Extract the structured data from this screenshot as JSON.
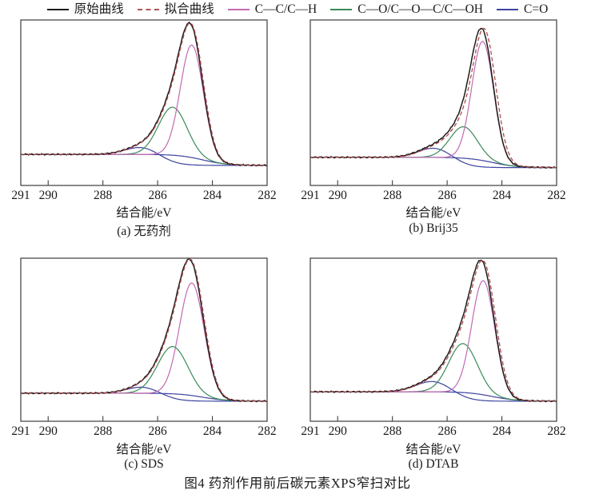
{
  "figure": {
    "caption": "图4 药剂作用前后碳元素XPS窄扫对比"
  },
  "legend": {
    "items": [
      {
        "label": "原始曲线",
        "color": "#1c1c1c",
        "dash": "solid"
      },
      {
        "label": "拟合曲线",
        "color": "#b05454",
        "dash": "dashed"
      },
      {
        "label": "C—C/C—H",
        "color": "#c26ab2",
        "dash": "solid"
      },
      {
        "label": "C—O/C—O—C/C—OH",
        "color": "#3a8a58",
        "dash": "solid"
      },
      {
        "label": "C=O",
        "color": "#3d43a0",
        "dash": "solid"
      }
    ]
  },
  "colors": {
    "original": "#1c1c1c",
    "fit": "#ad4a4a",
    "cc_ch": "#c26ab2",
    "co": "#3a8a58",
    "c_double_o": "#3d43a0",
    "frame": "#3c3c3c",
    "text": "#1a1a1a"
  },
  "chart_data": [
    {
      "type": "line",
      "caption": "(a) 无药剂",
      "xlabel": "结合能/eV",
      "ylabel": "",
      "x_axis": {
        "min": 282,
        "max": 291,
        "reversed": true,
        "unit": "eV",
        "tick_values": [
          291,
          290,
          288,
          286,
          284,
          282
        ],
        "tick_labels": [
          "291",
          "290",
          "288",
          "286",
          "284",
          "282"
        ],
        "tick_marks": [
          290,
          288,
          286,
          284
        ]
      },
      "y_axis": {
        "visible": false,
        "ylim": [
          0,
          1
        ]
      },
      "series_names": [
        "原始曲线",
        "拟合曲线",
        "C—C/C—H",
        "C—O/C—O—C/C—OH",
        "C=O"
      ],
      "baseline": {
        "left": 0.188,
        "right": 0.121,
        "step_center": 284.35,
        "step_width": 0.45
      },
      "fit_shift_ev": 0.03,
      "peaks": [
        {
          "name": "C—C/C—H",
          "color": "#c26ab2",
          "center": 284.75,
          "sigma": 0.42,
          "amp": 0.68
        },
        {
          "name": "C—O/C—O—C/C—OH",
          "color": "#3a8a58",
          "center": 285.45,
          "sigma": 0.52,
          "amp": 0.29
        },
        {
          "name": "C=O",
          "color": "#3d43a0",
          "center": 286.55,
          "sigma": 0.6,
          "amp": 0.05,
          "step_center": 285.9,
          "step_width": 0.38
        }
      ]
    },
    {
      "type": "line",
      "caption": "(b) Brij35",
      "xlabel": "结合能/eV",
      "ylabel": "",
      "x_axis": {
        "min": 282,
        "max": 291,
        "reversed": true,
        "unit": "eV",
        "tick_values": [
          291,
          290,
          288,
          286,
          284,
          282
        ],
        "tick_labels": [
          "291",
          "290",
          "288",
          "286",
          "284",
          "282"
        ],
        "tick_marks": [
          290,
          288,
          286,
          284
        ]
      },
      "y_axis": {
        "visible": false,
        "ylim": [
          0,
          1
        ]
      },
      "series_names": [
        "原始曲线",
        "拟合曲线",
        "C—C/C—H",
        "C—O/C—O—C/C—OH",
        "C=O"
      ],
      "baseline": {
        "left": 0.17,
        "right": 0.108,
        "step_center": 284.35,
        "step_width": 0.45
      },
      "fit_shift_ev": 0.09,
      "peaks": [
        {
          "name": "C—C/C—H",
          "color": "#c26ab2",
          "center": 284.7,
          "sigma": 0.4,
          "amp": 0.72
        },
        {
          "name": "C—O/C—O—C/C—OH",
          "color": "#3a8a58",
          "center": 285.4,
          "sigma": 0.5,
          "amp": 0.19
        },
        {
          "name": "C=O",
          "color": "#3d43a0",
          "center": 286.4,
          "sigma": 0.62,
          "amp": 0.066,
          "step_center": 285.9,
          "step_width": 0.38
        }
      ]
    },
    {
      "type": "line",
      "caption": "(c) SDS",
      "xlabel": "结合能/eV",
      "ylabel": "",
      "x_axis": {
        "min": 282,
        "max": 291,
        "reversed": true,
        "unit": "eV",
        "tick_values": [
          291,
          290,
          288,
          286,
          284,
          282
        ],
        "tick_labels": [
          "291",
          "290",
          "288",
          "286",
          "284",
          "282"
        ],
        "tick_marks": [
          290,
          288,
          286,
          284
        ]
      },
      "y_axis": {
        "visible": false,
        "ylim": [
          0,
          1
        ]
      },
      "series_names": [
        "原始曲线",
        "拟合曲线",
        "C—C/C—H",
        "C—O/C—O—C/C—OH",
        "C=O"
      ],
      "baseline": {
        "left": 0.172,
        "right": 0.123,
        "step_center": 284.35,
        "step_width": 0.45
      },
      "fit_shift_ev": 0.03,
      "peaks": [
        {
          "name": "C—C/C—H",
          "color": "#c26ab2",
          "center": 284.75,
          "sigma": 0.45,
          "amp": 0.69
        },
        {
          "name": "C—O/C—O—C/C—OH",
          "color": "#3a8a58",
          "center": 285.45,
          "sigma": 0.55,
          "amp": 0.29
        },
        {
          "name": "C=O",
          "color": "#3d43a0",
          "center": 286.5,
          "sigma": 0.6,
          "amp": 0.044,
          "step_center": 285.9,
          "step_width": 0.38
        }
      ]
    },
    {
      "type": "line",
      "caption": "(d) DTAB",
      "xlabel": "结合能/eV",
      "ylabel": "",
      "x_axis": {
        "min": 282,
        "max": 291,
        "reversed": true,
        "unit": "eV",
        "tick_values": [
          291,
          290,
          288,
          286,
          284,
          282
        ],
        "tick_labels": [
          "291",
          "290",
          "288",
          "286",
          "284",
          "282"
        ],
        "tick_marks": [
          290,
          288,
          286,
          284
        ]
      },
      "y_axis": {
        "visible": false,
        "ylim": [
          0,
          1
        ]
      },
      "series_names": [
        "原始曲线",
        "拟合曲线",
        "C—C/C—H",
        "C—O/C—O—C/C—OH",
        "C=O"
      ],
      "baseline": {
        "left": 0.181,
        "right": 0.123,
        "step_center": 284.35,
        "step_width": 0.45
      },
      "fit_shift_ev": 0.06,
      "peaks": [
        {
          "name": "C—C/C—H",
          "color": "#c26ab2",
          "center": 284.68,
          "sigma": 0.42,
          "amp": 0.7
        },
        {
          "name": "C—O/C—O—C/C—OH",
          "color": "#3a8a58",
          "center": 285.42,
          "sigma": 0.52,
          "amp": 0.3
        },
        {
          "name": "C=O",
          "color": "#3d43a0",
          "center": 286.45,
          "sigma": 0.65,
          "amp": 0.074,
          "step_center": 285.95,
          "step_width": 0.4
        }
      ]
    }
  ]
}
